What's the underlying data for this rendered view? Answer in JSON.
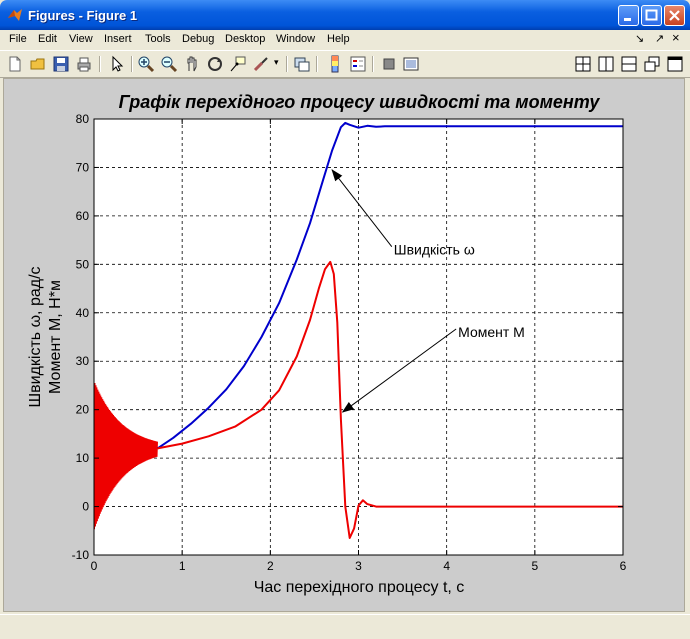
{
  "window": {
    "title": "Figures - Figure 1"
  },
  "menu": {
    "items": [
      "File",
      "Edit",
      "View",
      "Insert",
      "Tools",
      "Debug",
      "Desktop",
      "Window",
      "Help"
    ],
    "undock_glyph": "↘",
    "dock_glyph": "↗",
    "close_glyph": "×"
  },
  "toolbar": {
    "icons": [
      "new-figure-icon",
      "open-icon",
      "save-icon",
      "print-icon",
      "edit-plot-icon",
      "zoom-in-icon",
      "zoom-out-icon",
      "pan-icon",
      "rotate-icon",
      "data-cursor-icon",
      "brush-icon",
      "link-icon",
      "colorbar-icon",
      "legend-icon",
      "hide-tools-icon",
      "show-tools-icon"
    ],
    "layout_icons": [
      "tile-icon",
      "left-right-icon",
      "top-bottom-icon",
      "float-icon",
      "maximize-icon"
    ]
  },
  "chart_data": {
    "type": "line",
    "title": "Графік перехідного процесу швидкості та моменту",
    "xlabel": "Час перехідного процесу t, с",
    "ylabel_line1": "Швидкість ω, рад/с",
    "ylabel_line2": "Момент M, Н*м",
    "xlim": [
      0,
      6
    ],
    "ylim": [
      -10,
      80
    ],
    "xticks": [
      0,
      1,
      2,
      3,
      4,
      5,
      6
    ],
    "yticks": [
      -10,
      0,
      10,
      20,
      30,
      40,
      50,
      60,
      70,
      80
    ],
    "grid": true,
    "series": [
      {
        "color": "#0000cc",
        "x": [
          0.72,
          0.9,
          1.1,
          1.3,
          1.5,
          1.7,
          1.9,
          2.1,
          2.3,
          2.45,
          2.6,
          2.7,
          2.8,
          2.85,
          2.9,
          3.0,
          3.1,
          3.2,
          3.3,
          4.0,
          5.0,
          6.0
        ],
        "y": [
          12,
          14.2,
          17.1,
          20.4,
          24.2,
          29,
          35,
          42,
          51,
          58.5,
          67.5,
          73.5,
          78.3,
          79.2,
          78.8,
          78.2,
          78.6,
          78.4,
          78.5,
          78.5,
          78.5,
          78.5
        ]
      },
      {
        "color": "#ee0000",
        "x": [
          0.72,
          1.0,
          1.3,
          1.6,
          1.9,
          2.1,
          2.3,
          2.45,
          2.55,
          2.62,
          2.68,
          2.72,
          2.76,
          2.8,
          2.85,
          2.9,
          2.95,
          3.0,
          3.05,
          3.1,
          3.2,
          4.0,
          5.0,
          6.0
        ],
        "y": [
          12,
          13,
          14.5,
          16.5,
          20,
          24,
          31,
          38.5,
          45,
          49,
          50.5,
          48,
          38,
          18,
          0,
          -6.5,
          -4.5,
          0.2,
          1.3,
          0.5,
          0,
          0,
          0,
          0
        ]
      }
    ],
    "oscillation": {
      "color": "#ee0000",
      "x_end": 0.72,
      "upper_start": 26,
      "lower_start": -5,
      "settle": 12
    },
    "annotations": [
      {
        "text": "Швидкість ω",
        "text_x": 3.4,
        "text_y": 52,
        "arrow_to_x": 2.7,
        "arrow_to_y": 69.5
      },
      {
        "text": "Момент M",
        "text_x": 4.13,
        "text_y": 35,
        "arrow_to_x": 2.82,
        "arrow_to_y": 19.5
      }
    ]
  }
}
